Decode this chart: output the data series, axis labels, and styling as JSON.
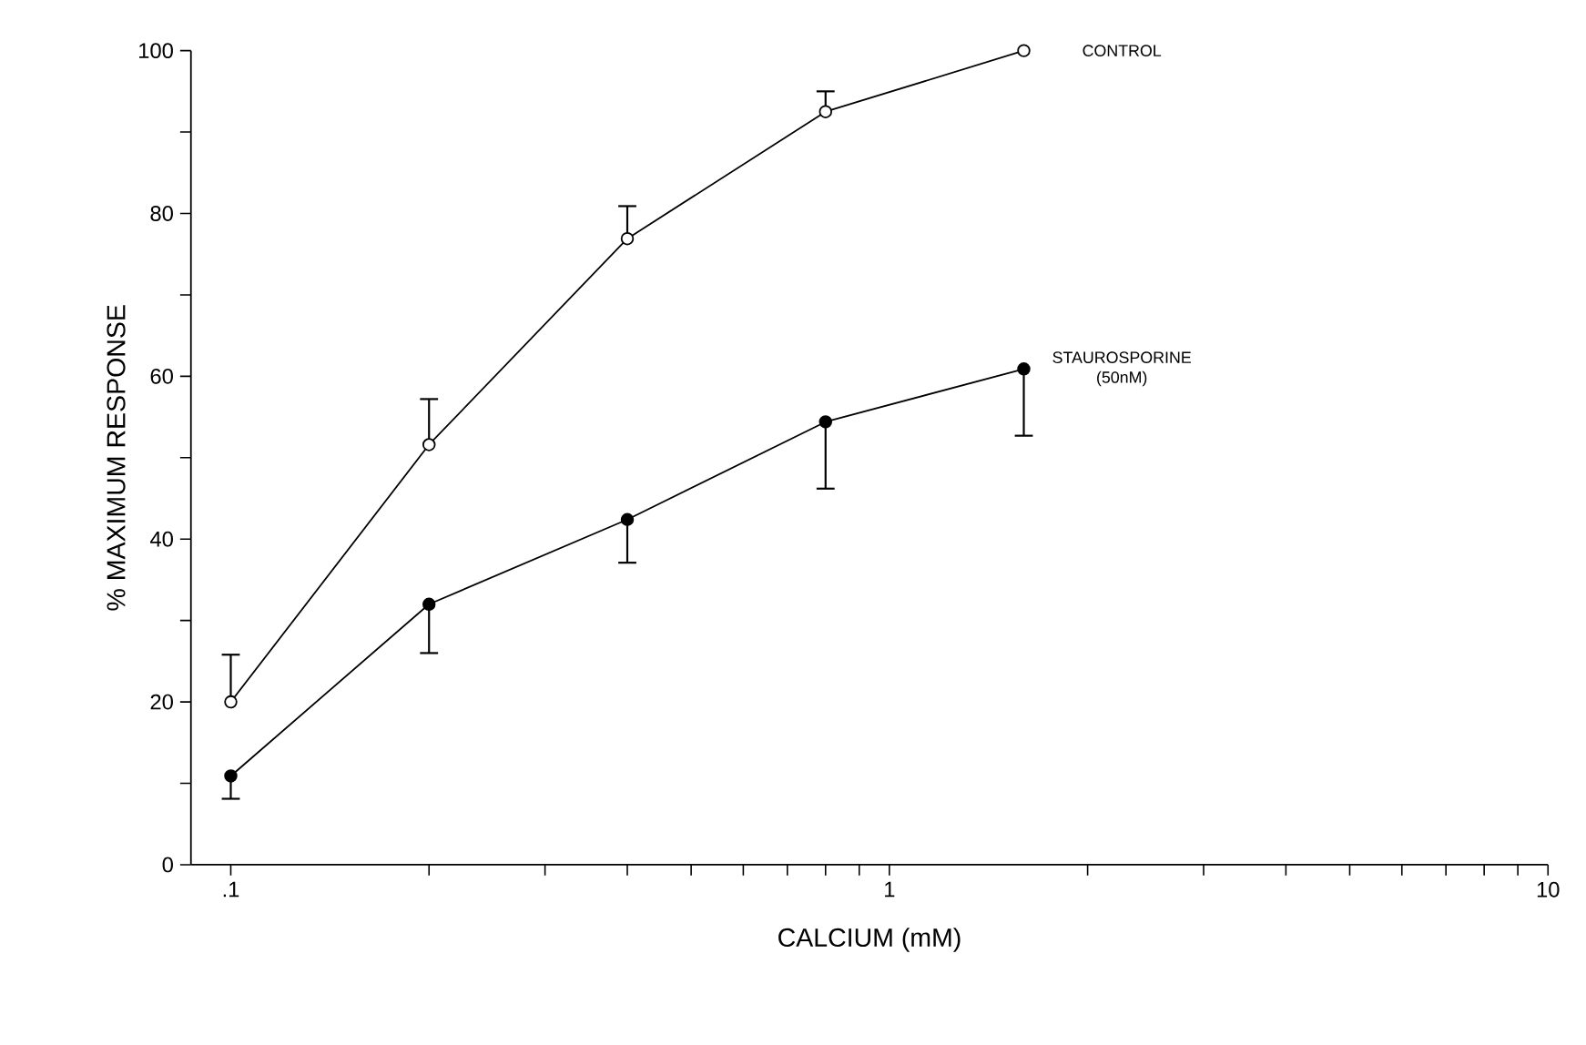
{
  "chart_data": {
    "type": "line",
    "xlabel": "CALCIUM (mM)",
    "ylabel": "% MAXIMUM RESPONSE",
    "log": "x",
    "xlim": [
      0.087,
      10
    ],
    "ylim": [
      0,
      100
    ],
    "xticks": [
      {
        "value": 0.1,
        "label": ".1"
      },
      {
        "value": 0.2,
        "label": null
      },
      {
        "value": 0.3,
        "label": null
      },
      {
        "value": 0.4,
        "label": null
      },
      {
        "value": 0.5,
        "label": null
      },
      {
        "value": 0.6,
        "label": null
      },
      {
        "value": 0.7,
        "label": null
      },
      {
        "value": 0.8,
        "label": null
      },
      {
        "value": 0.9,
        "label": null
      },
      1,
      {
        "value": 2,
        "label": null
      },
      {
        "value": 3,
        "label": null
      },
      {
        "value": 4,
        "label": null
      },
      {
        "value": 5,
        "label": null
      },
      {
        "value": 6,
        "label": null
      },
      {
        "value": 7,
        "label": null
      },
      {
        "value": 8,
        "label": null
      },
      {
        "value": 9,
        "label": null
      },
      10
    ],
    "yticks": [
      0,
      {
        "value": 10,
        "label": null
      },
      20,
      {
        "value": 30,
        "label": null
      },
      40,
      {
        "value": 50,
        "label": null
      },
      60,
      {
        "value": 70,
        "label": null
      },
      80,
      {
        "value": 90,
        "label": null
      },
      100
    ],
    "x": [
      0.1,
      0.2,
      0.4,
      0.8,
      1.6
    ],
    "marker": "circle",
    "line_style": "solid",
    "legend": false,
    "grid": false,
    "series": [
      {
        "name": "CONTROL",
        "color": "#000000",
        "values": [
          20,
          51.6,
          76.9,
          92.5,
          100
        ],
        "errors": [
          [
            20,
            25.8
          ],
          [
            51.6,
            57.2
          ],
          [
            76.9,
            80.9
          ],
          [
            92.5,
            95
          ],
          null
        ]
      },
      {
        "name": "STAUROSPORINE (50nM)",
        "color": "#000000",
        "values": [
          10.9,
          32,
          42.4,
          54.4,
          60.9
        ],
        "errors": [
          [
            8.1,
            10.9
          ],
          [
            26,
            32
          ],
          [
            37.1,
            42.4
          ],
          [
            46.2,
            54.4
          ],
          [
            52.7,
            60.9
          ]
        ]
      }
    ]
  }
}
